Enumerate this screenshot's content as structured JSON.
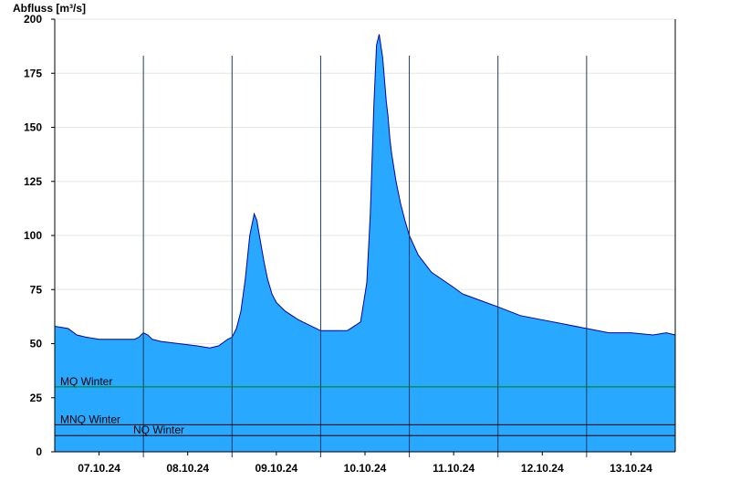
{
  "chart_data": {
    "type": "area",
    "ylabel": "Abfluss [m³/s]",
    "ylim": [
      0,
      200
    ],
    "yticks": [
      0,
      25,
      50,
      75,
      100,
      125,
      150,
      175,
      200
    ],
    "x_dates": [
      "07.10.24",
      "08.10.24",
      "09.10.24",
      "10.10.24",
      "11.10.24",
      "12.10.24",
      "13.10.24"
    ],
    "x_range_days": [
      0,
      7
    ],
    "fill_color": "#29a8ff",
    "line_color": "#0000aa",
    "series": [
      {
        "x_days": [
          0.0,
          0.15,
          0.25,
          0.35,
          0.5,
          0.7,
          0.9,
          0.95,
          1.0,
          1.05,
          1.1,
          1.2,
          1.4,
          1.6,
          1.75,
          1.85,
          1.95,
          2.0,
          2.05,
          2.1,
          2.15,
          2.2,
          2.25,
          2.28,
          2.3,
          2.33,
          2.36,
          2.4,
          2.45,
          2.5,
          2.6,
          2.75,
          2.9,
          3.0,
          3.1,
          3.3,
          3.45,
          3.52,
          3.56,
          3.6,
          3.63,
          3.66,
          3.7,
          3.72,
          3.74,
          3.76,
          3.78,
          3.8,
          3.85,
          3.9,
          3.95,
          4.0,
          4.1,
          4.25,
          4.5,
          4.6,
          4.8,
          5.0,
          5.25,
          5.5,
          5.75,
          6.0,
          6.25,
          6.5,
          6.75,
          6.9,
          7.0
        ],
        "values": [
          58,
          57,
          54,
          53,
          52,
          52,
          52,
          53,
          55,
          54,
          52,
          51,
          50,
          49,
          48,
          49,
          52,
          53,
          57,
          65,
          80,
          100,
          110,
          107,
          102,
          95,
          88,
          80,
          73,
          69,
          65,
          61,
          58,
          56,
          56,
          56,
          60,
          78,
          110,
          160,
          188,
          193,
          182,
          172,
          162,
          155,
          145,
          138,
          125,
          115,
          107,
          100,
          91,
          83,
          76,
          73,
          70,
          67,
          63,
          61,
          59,
          57,
          55,
          55,
          54,
          55,
          54
        ]
      }
    ],
    "reference_lines": [
      {
        "label": "MQ Winter",
        "value": 30,
        "color": "#008000"
      },
      {
        "label": "MNQ Winter",
        "value": 12.5,
        "color": "#000000"
      },
      {
        "label": "NQ Winter",
        "value": 7.5,
        "color": "#000000"
      }
    ]
  }
}
